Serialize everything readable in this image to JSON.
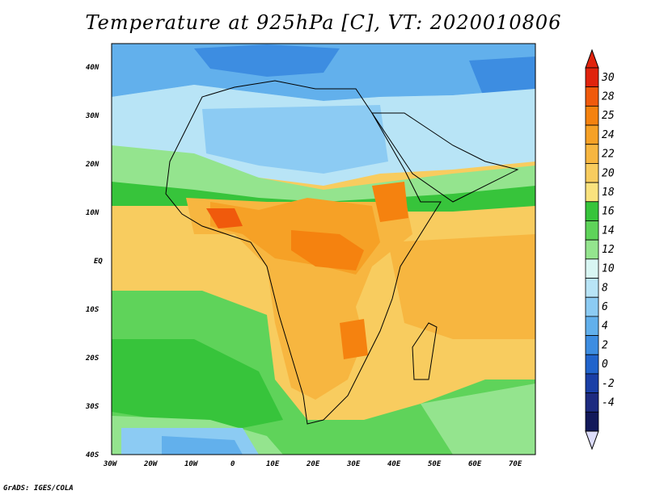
{
  "title": "Temperature at 925hPa [C], VT: 2020010806",
  "credit": "GrADS: IGES/COLA",
  "lat_labels": [
    "40N",
    "30N",
    "20N",
    "10N",
    "EQ",
    "10S",
    "20S",
    "30S",
    "40S"
  ],
  "lon_labels": [
    "30W",
    "20W",
    "10W",
    "0",
    "10E",
    "20E",
    "30E",
    "40E",
    "50E",
    "60E",
    "70E"
  ],
  "colorbar": {
    "levels": [
      "30",
      "28",
      "25",
      "24",
      "22",
      "20",
      "18",
      "16",
      "14",
      "12",
      "10",
      "8",
      "6",
      "4",
      "2",
      "0",
      "-2",
      "-4"
    ],
    "colors": [
      "#e0230d",
      "#f05a0c",
      "#f5820f",
      "#f6a126",
      "#f7b640",
      "#f8cc5f",
      "#fae27e",
      "#37c43b",
      "#5fd35a",
      "#94e48e",
      "#d8f6f3",
      "#b8e4f6",
      "#8ccbf3",
      "#62b0ec",
      "#3d8de1",
      "#2164cc",
      "#1a3fa6",
      "#1d2b80",
      "#12195a"
    ]
  },
  "map": {
    "lon_range": [
      -30,
      75
    ],
    "lat_range": [
      -40,
      45
    ]
  }
}
